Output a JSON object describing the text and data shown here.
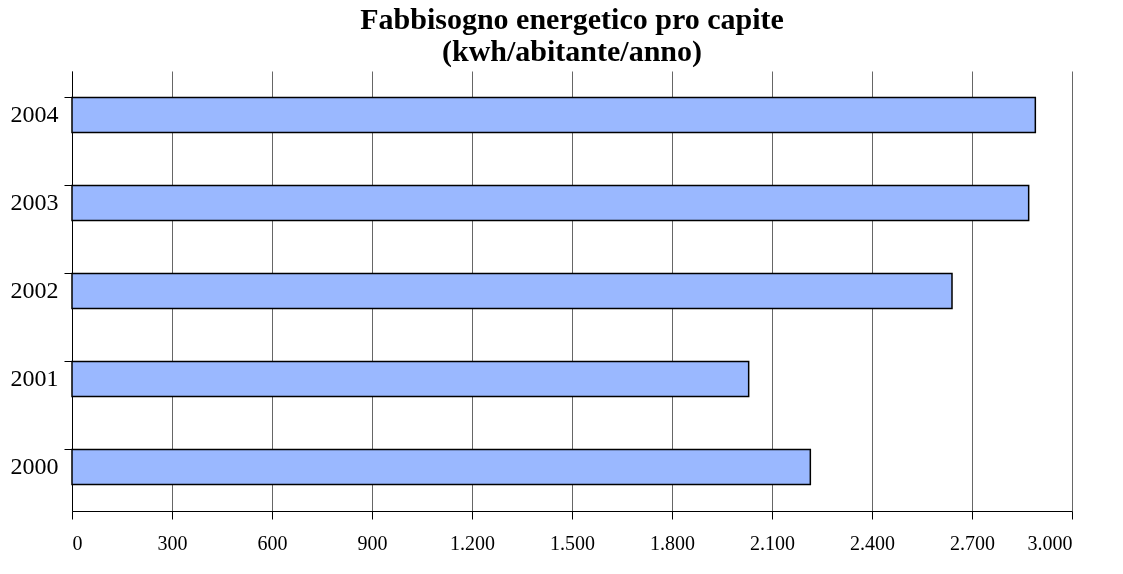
{
  "chart_data": {
    "type": "bar",
    "orientation": "horizontal",
    "title": [
      "Fabbisogno energetico pro capite",
      "(kwh/abitante/anno)"
    ],
    "categories": [
      "2004",
      "2003",
      "2002",
      "2001",
      "2000"
    ],
    "series": [
      {
        "color": "#9ab8ff",
        "values": [
          2890,
          2870,
          2640,
          2030,
          2215
        ]
      }
    ],
    "xlim": [
      0,
      3000
    ],
    "xticks": [
      0,
      {
        "value": 300,
        "label": "300"
      },
      {
        "value": 600,
        "label": "600"
      },
      {
        "value": 900,
        "label": "900"
      },
      {
        "value": 1200,
        "label": "1.200"
      },
      {
        "value": 1500,
        "label": "1.500"
      },
      {
        "value": 1800,
        "label": "1.800"
      },
      {
        "value": 2100,
        "label": "2.100"
      },
      {
        "value": 2400,
        "label": "2.400"
      },
      {
        "value": 2700,
        "label": "2.700"
      },
      {
        "value": 3000,
        "label": "3.000"
      }
    ],
    "grid": "x"
  }
}
